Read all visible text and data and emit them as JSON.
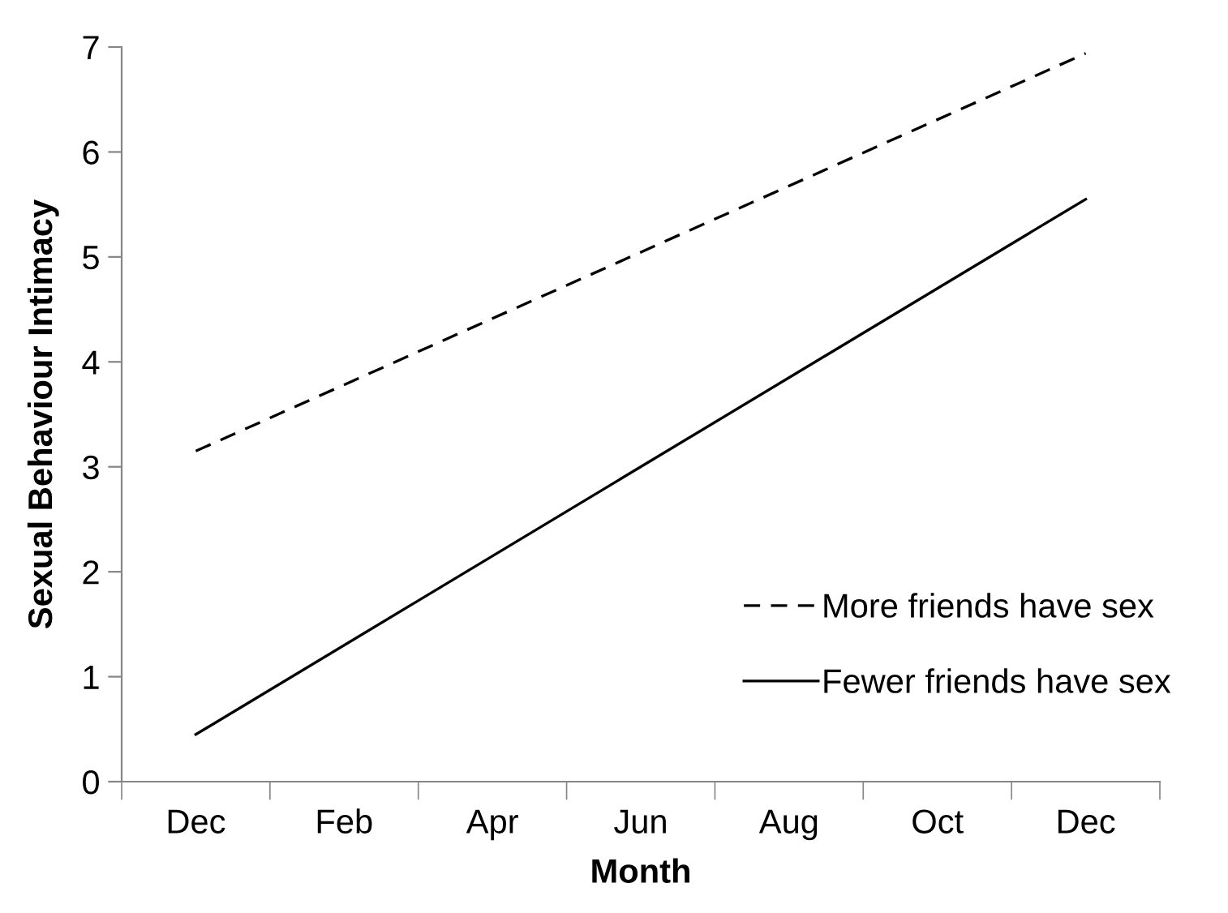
{
  "chart_data": {
    "type": "line",
    "xlabel": "Month",
    "ylabel": "Sexual Behaviour Intimacy",
    "categories": [
      "Dec",
      "Feb",
      "Apr",
      "Jun",
      "Aug",
      "Oct",
      "Dec"
    ],
    "series": [
      {
        "name": "More friends have sex",
        "color": "#000000",
        "line_style": "dashed",
        "values": [
          3.15,
          null,
          null,
          null,
          null,
          null,
          6.94
        ]
      },
      {
        "name": "Fewer friends have sex",
        "color": "#000000",
        "line_style": "solid",
        "values": [
          0.45,
          null,
          null,
          null,
          null,
          null,
          5.55
        ]
      }
    ],
    "ylim": [
      0,
      7
    ],
    "yticks": [
      0,
      1,
      2,
      3,
      4,
      5,
      6,
      7
    ],
    "grid": false,
    "legend": "bottom right",
    "marker": "none"
  }
}
